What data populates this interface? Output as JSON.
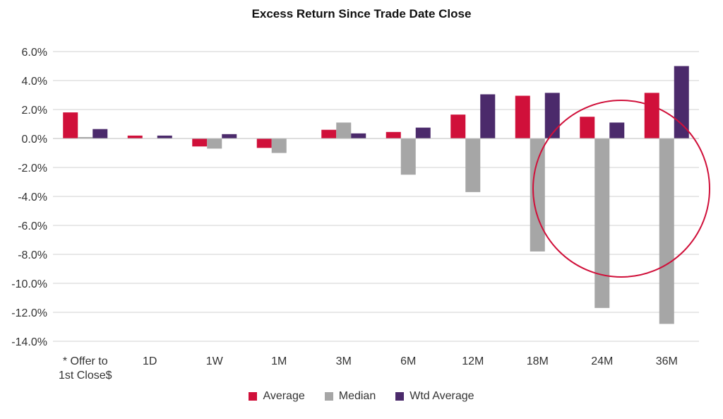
{
  "chart_data": {
    "type": "bar",
    "title": "Excess Return Since Trade Date Close",
    "xlabel": "",
    "ylabel": "",
    "ylim": [
      -14.0,
      6.0
    ],
    "y_ticks": [
      "6.0%",
      "4.0%",
      "2.0%",
      "0.0%",
      "-2.0%",
      "-4.0%",
      "-6.0%",
      "-8.0%",
      "-10.0%",
      "-12.0%",
      "-14.0%"
    ],
    "y_tick_values": [
      6,
      4,
      2,
      0,
      -2,
      -4,
      -6,
      -8,
      -10,
      -12,
      -14
    ],
    "categories": [
      "* Offer to\n1st Close$",
      "1D",
      "1W",
      "1M",
      "3M",
      "6M",
      "12M",
      "18M",
      "24M",
      "36M"
    ],
    "series": [
      {
        "name": "Average",
        "color": "#D0103A",
        "values": [
          1.8,
          0.2,
          -0.55,
          -0.65,
          0.6,
          0.45,
          1.65,
          2.95,
          1.5,
          3.15
        ]
      },
      {
        "name": "Median",
        "color": "#A6A6A6",
        "values": [
          0.1,
          0.0,
          -0.7,
          -1.0,
          1.1,
          -2.5,
          -3.7,
          -7.8,
          -11.7,
          -12.8
        ]
      },
      {
        "name": "Wtd Average",
        "color": "#4B2A6B",
        "values": [
          0.65,
          0.2,
          0.3,
          0.0,
          0.35,
          0.75,
          3.05,
          3.15,
          1.1,
          5.0
        ]
      }
    ],
    "grid": true,
    "legend_position": "bottom",
    "annotation": {
      "shape": "circle",
      "color": "#D0103A",
      "marks": "18M-36M"
    }
  }
}
